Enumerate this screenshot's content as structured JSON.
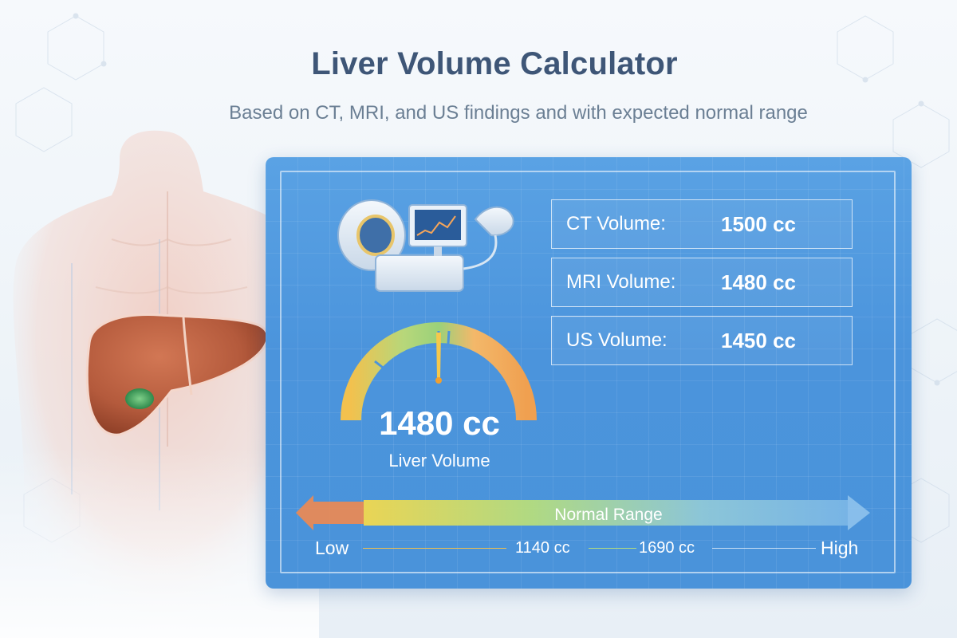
{
  "header": {
    "title": "Liver Volume Calculator",
    "subtitle": "Based on CT, MRI, and US findings and with expected normal range"
  },
  "volumes": [
    {
      "label": "CT Volume:",
      "value": "1500 cc"
    },
    {
      "label": "MRI Volume:",
      "value": "1480 cc"
    },
    {
      "label": "US Volume:",
      "value": "1450 cc"
    }
  ],
  "gauge": {
    "value": "1480 cc",
    "label": "Liver Volume"
  },
  "range": {
    "label": "Normal Range",
    "low_label": "Low",
    "high_label": "High",
    "lower_bound": "1140 cc",
    "upper_bound": "1690 cc"
  },
  "icons": [
    "torso-illustration",
    "liver-icon",
    "scanner-icon",
    "monitor-icon",
    "ultrasound-probe-icon"
  ],
  "colors": {
    "panel": "#4b94dc",
    "title": "#3e5677",
    "subtitle": "#6b7f94",
    "liver": "#b45a3c",
    "gauge_low": "#f2c14e",
    "gauge_normal": "#9bd17a",
    "gauge_high": "#f0a050",
    "range_low": "#f08a50"
  }
}
